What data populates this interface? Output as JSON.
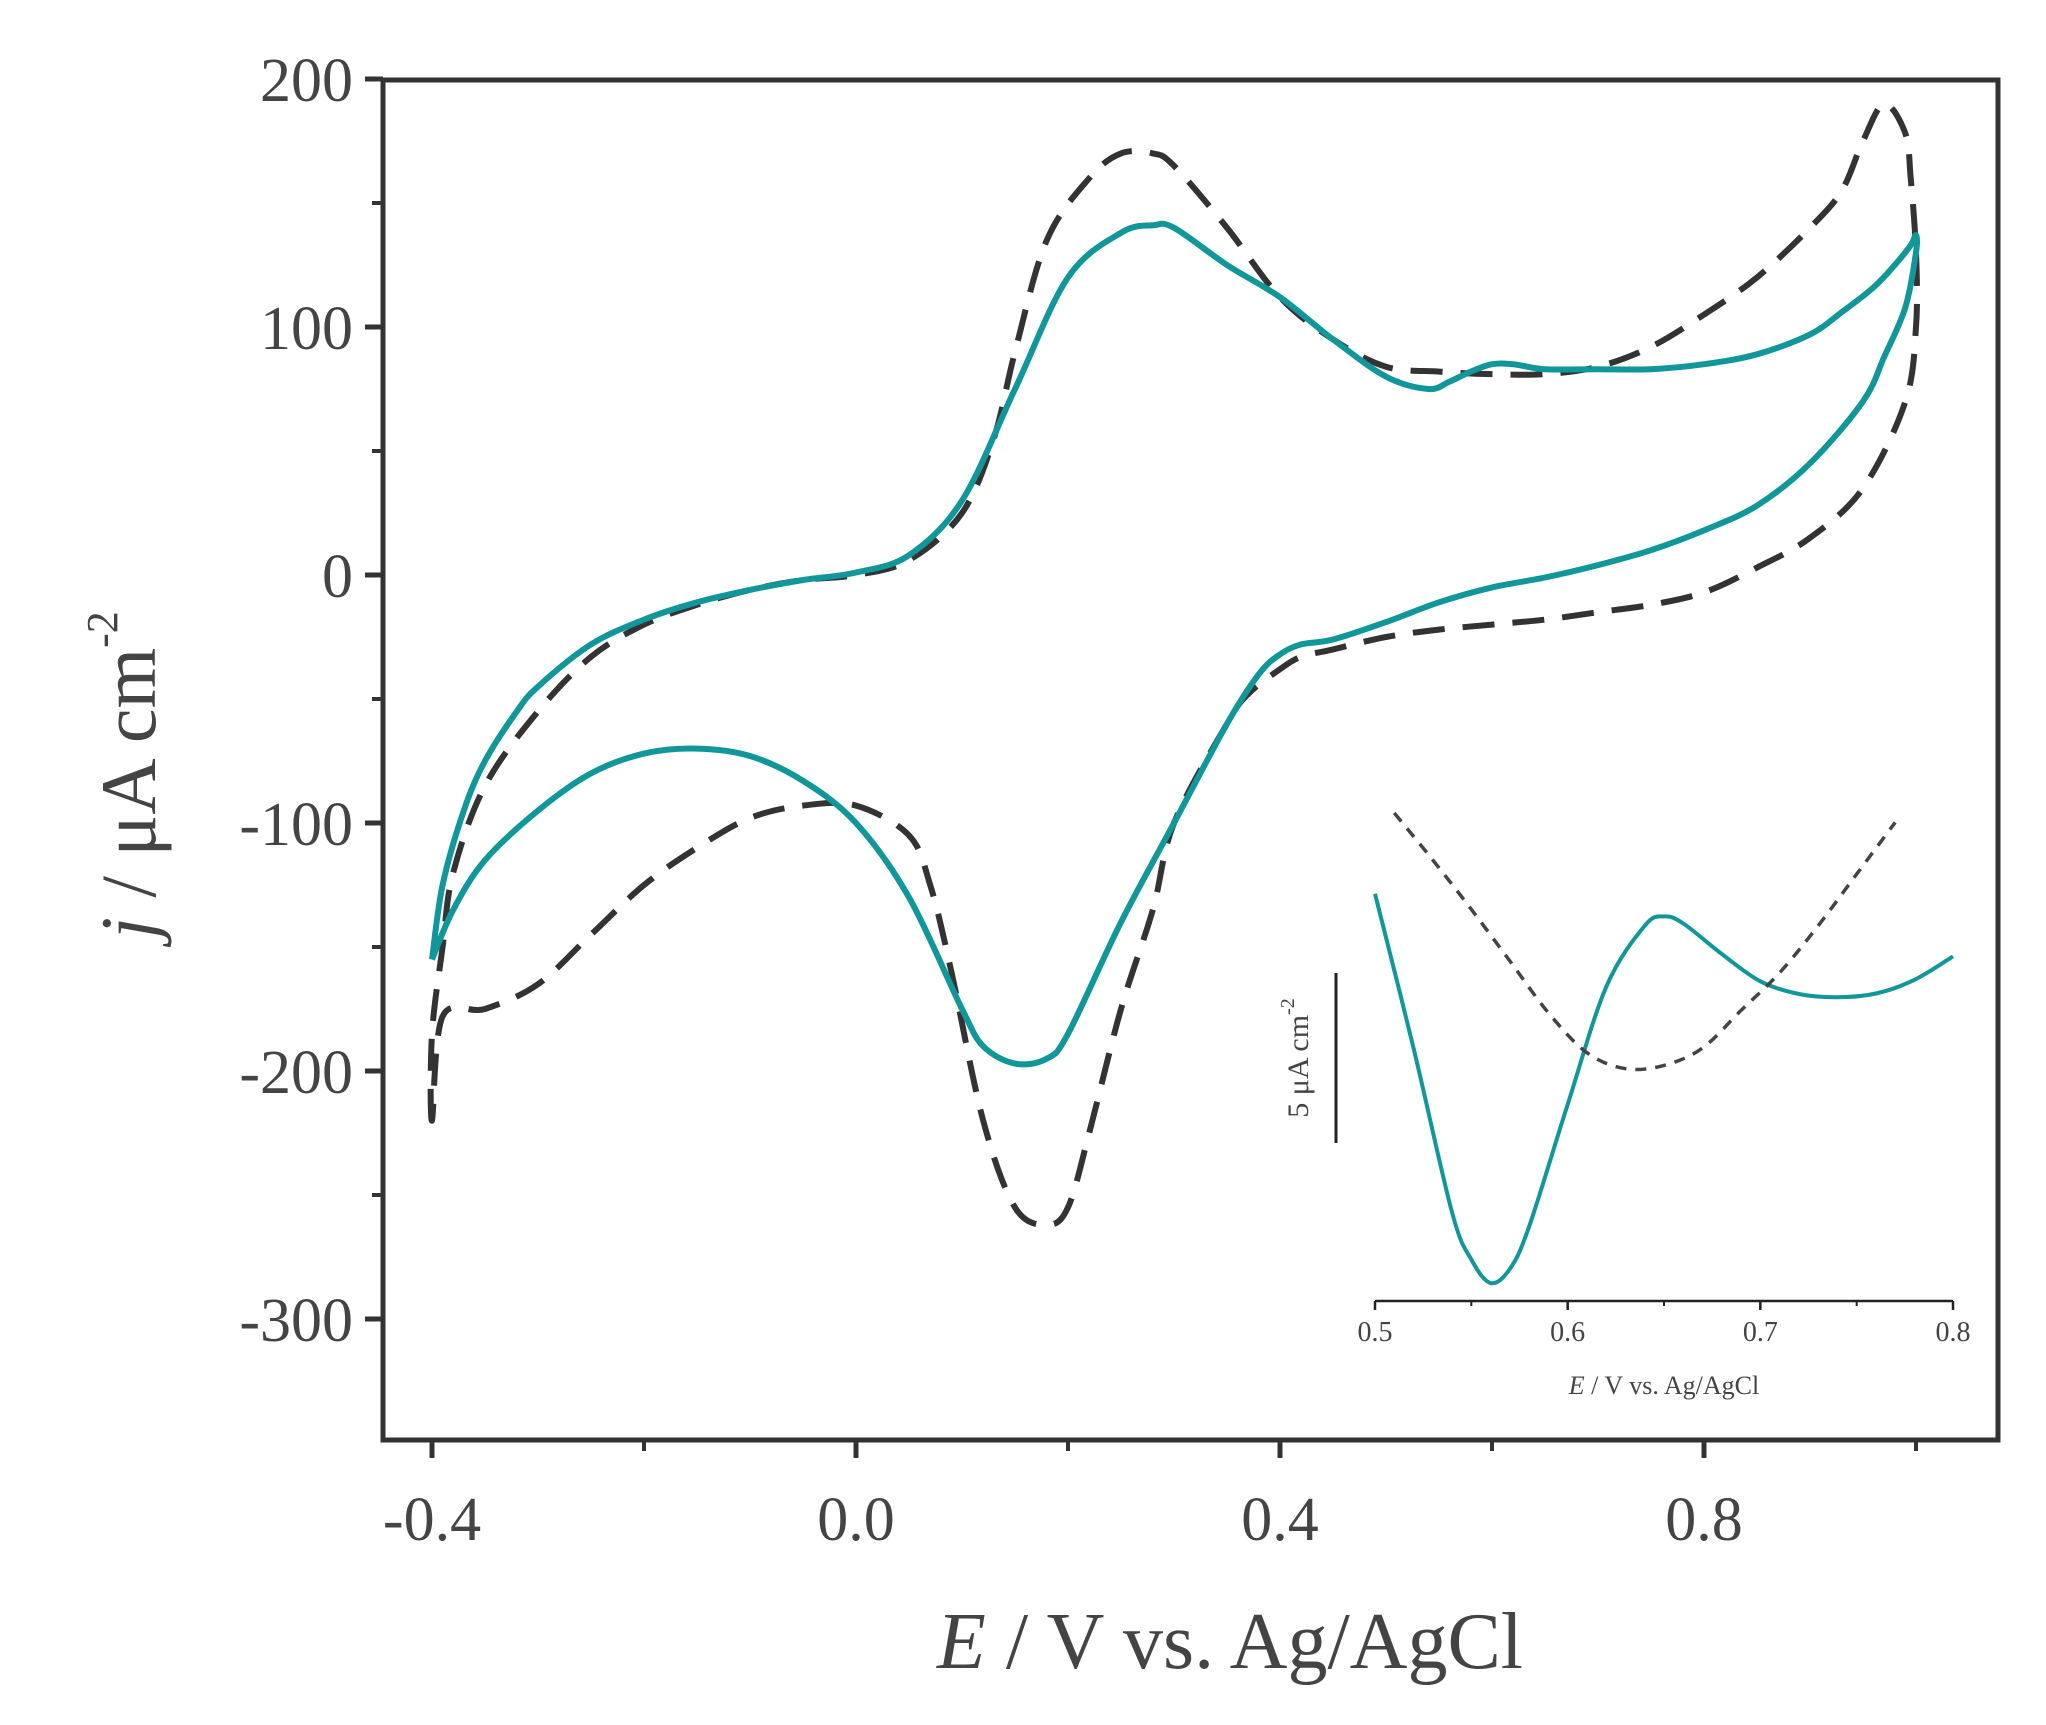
{
  "chart_data": [
    {
      "type": "line",
      "name": "main",
      "xlabel": "E / V vs. Ag/AgCl",
      "xlabel_italic_part": "E",
      "xlabel_rest": " / V vs. Ag/AgCl",
      "ylabel_italic_part": "j",
      "ylabel_rest": " / μA cm",
      "ylabel_superscript": "-2",
      "xlim": [
        -0.45,
        1.08
      ],
      "ylim": [
        -350,
        200
      ],
      "xticks": [
        -0.4,
        0.0,
        0.4,
        0.8
      ],
      "xtick_labels": [
        "-0.4",
        "0.0",
        "0.4",
        "0.8"
      ],
      "xminor": [
        -0.2,
        0.2,
        0.6,
        1.0
      ],
      "yticks": [
        200,
        100,
        0,
        -100,
        -200,
        -300
      ],
      "ytick_labels": [
        "200",
        "100",
        "0",
        "-100",
        "-200",
        "-300"
      ],
      "yminor": [
        150,
        50,
        -50,
        -150,
        -250
      ],
      "series": [
        {
          "name": "dashed",
          "color": "#333333",
          "style": "dashed",
          "x": [
            -0.4,
            -0.4,
            -0.39,
            -0.38,
            -0.35,
            -0.3,
            -0.25,
            -0.2,
            -0.15,
            -0.1,
            -0.05,
            0.0,
            0.05,
            0.1,
            0.13,
            0.15,
            0.18,
            0.22,
            0.25,
            0.28,
            0.3,
            0.35,
            0.4,
            0.45,
            0.5,
            0.55,
            0.6,
            0.65,
            0.7,
            0.75,
            0.8,
            0.85,
            0.9,
            0.93,
            0.95,
            0.97,
            0.99,
            0.995,
            1.0,
            1.0,
            0.99,
            0.95,
            0.9,
            0.85,
            0.8,
            0.75,
            0.7,
            0.65,
            0.6,
            0.55,
            0.5,
            0.45,
            0.42,
            0.4,
            0.37,
            0.35,
            0.3,
            0.28,
            0.25,
            0.22,
            0.2,
            0.18,
            0.15,
            0.12,
            0.09,
            0.07,
            0.05,
            0.0,
            -0.05,
            -0.1,
            -0.15,
            -0.2,
            -0.25,
            -0.3,
            -0.35,
            -0.39
          ],
          "y": [
            -220,
            -185,
            -150,
            -120,
            -85,
            -55,
            -33,
            -20,
            -12,
            -6,
            -2,
            0,
            6,
            25,
            55,
            90,
            135,
            160,
            170,
            170,
            165,
            140,
            112,
            95,
            84,
            82,
            81,
            81,
            84,
            92,
            105,
            120,
            140,
            155,
            175,
            190,
            178,
            160,
            130,
            100,
            70,
            35,
            15,
            3,
            -7,
            -12,
            -15,
            -18,
            -20,
            -22,
            -25,
            -30,
            -33,
            -38,
            -48,
            -60,
            -100,
            -135,
            -175,
            -225,
            -255,
            -262,
            -255,
            -220,
            -160,
            -125,
            -105,
            -93,
            -93,
            -98,
            -110,
            -125,
            -145,
            -165,
            -175,
            -178
          ],
          "closed": true
        },
        {
          "name": "solid",
          "color": "#11969a",
          "style": "solid",
          "x": [
            -0.4,
            -0.39,
            -0.37,
            -0.35,
            -0.32,
            -0.3,
            -0.25,
            -0.2,
            -0.15,
            -0.1,
            -0.05,
            0.0,
            0.05,
            0.1,
            0.15,
            0.2,
            0.25,
            0.28,
            0.3,
            0.35,
            0.4,
            0.45,
            0.5,
            0.54,
            0.56,
            0.58,
            0.6,
            0.62,
            0.65,
            0.7,
            0.75,
            0.8,
            0.85,
            0.9,
            0.93,
            0.96,
            0.98,
            0.995,
            1.0,
            1.0,
            0.99,
            0.97,
            0.95,
            0.9,
            0.85,
            0.8,
            0.75,
            0.7,
            0.65,
            0.6,
            0.55,
            0.5,
            0.45,
            0.42,
            0.4,
            0.38,
            0.35,
            0.3,
            0.25,
            0.2,
            0.18,
            0.15,
            0.12,
            0.1,
            0.05,
            0.0,
            -0.05,
            -0.1,
            -0.15,
            -0.2,
            -0.25,
            -0.3,
            -0.35,
            -0.38,
            -0.4
          ],
          "y": [
            -155,
            -125,
            -95,
            -75,
            -55,
            -45,
            -28,
            -18,
            -11,
            -6,
            -2,
            1,
            8,
            30,
            75,
            120,
            138,
            141,
            140,
            125,
            112,
            95,
            80,
            75,
            78,
            82,
            85,
            85,
            83,
            83,
            83,
            85,
            89,
            97,
            106,
            116,
            125,
            133,
            137,
            130,
            108,
            88,
            70,
            45,
            28,
            18,
            10,
            4,
            -1,
            -5,
            -11,
            -19,
            -26,
            -28,
            -32,
            -40,
            -60,
            -100,
            -140,
            -185,
            -195,
            -197,
            -190,
            -175,
            -130,
            -100,
            -83,
            -73,
            -70,
            -72,
            -80,
            -95,
            -115,
            -135,
            -155
          ],
          "closed": false
        }
      ]
    },
    {
      "type": "line",
      "name": "inset",
      "xlabel_italic_part": "E",
      "xlabel_rest": " / V vs. Ag/AgCl",
      "xlim": [
        0.5,
        0.8
      ],
      "ylim": [
        0,
        1
      ],
      "xticks": [
        0.5,
        0.6,
        0.7,
        0.8
      ],
      "xtick_labels": [
        "0.5",
        "0.6",
        "0.7",
        "0.8"
      ],
      "xminor": [
        0.55,
        0.65,
        0.75
      ],
      "scalebar_text": "5 μA cm",
      "scalebar_superscript": "-2",
      "scalebar_value": 5,
      "series": [
        {
          "name": "solid",
          "color": "#11969a",
          "style": "solid",
          "x": [
            0.5,
            0.52,
            0.54,
            0.55,
            0.56,
            0.57,
            0.58,
            0.6,
            0.62,
            0.64,
            0.65,
            0.66,
            0.68,
            0.7,
            0.72,
            0.74,
            0.76,
            0.78,
            0.8
          ],
          "y": [
            0.828,
            0.5,
            0.15,
            0.05,
            0.0,
            0.03,
            0.12,
            0.38,
            0.63,
            0.76,
            0.78,
            0.765,
            0.7,
            0.642,
            0.615,
            0.608,
            0.616,
            0.645,
            0.695
          ]
        },
        {
          "name": "dashed",
          "color": "#444444",
          "style": "dashed",
          "x": [
            0.51,
            0.53,
            0.55,
            0.57,
            0.59,
            0.61,
            0.63,
            0.65,
            0.67,
            0.69,
            0.71,
            0.73,
            0.75,
            0.77
          ],
          "y": [
            1.0,
            0.9,
            0.795,
            0.685,
            0.575,
            0.49,
            0.456,
            0.463,
            0.5,
            0.58,
            0.66,
            0.76,
            0.87,
            0.98
          ]
        }
      ]
    }
  ]
}
